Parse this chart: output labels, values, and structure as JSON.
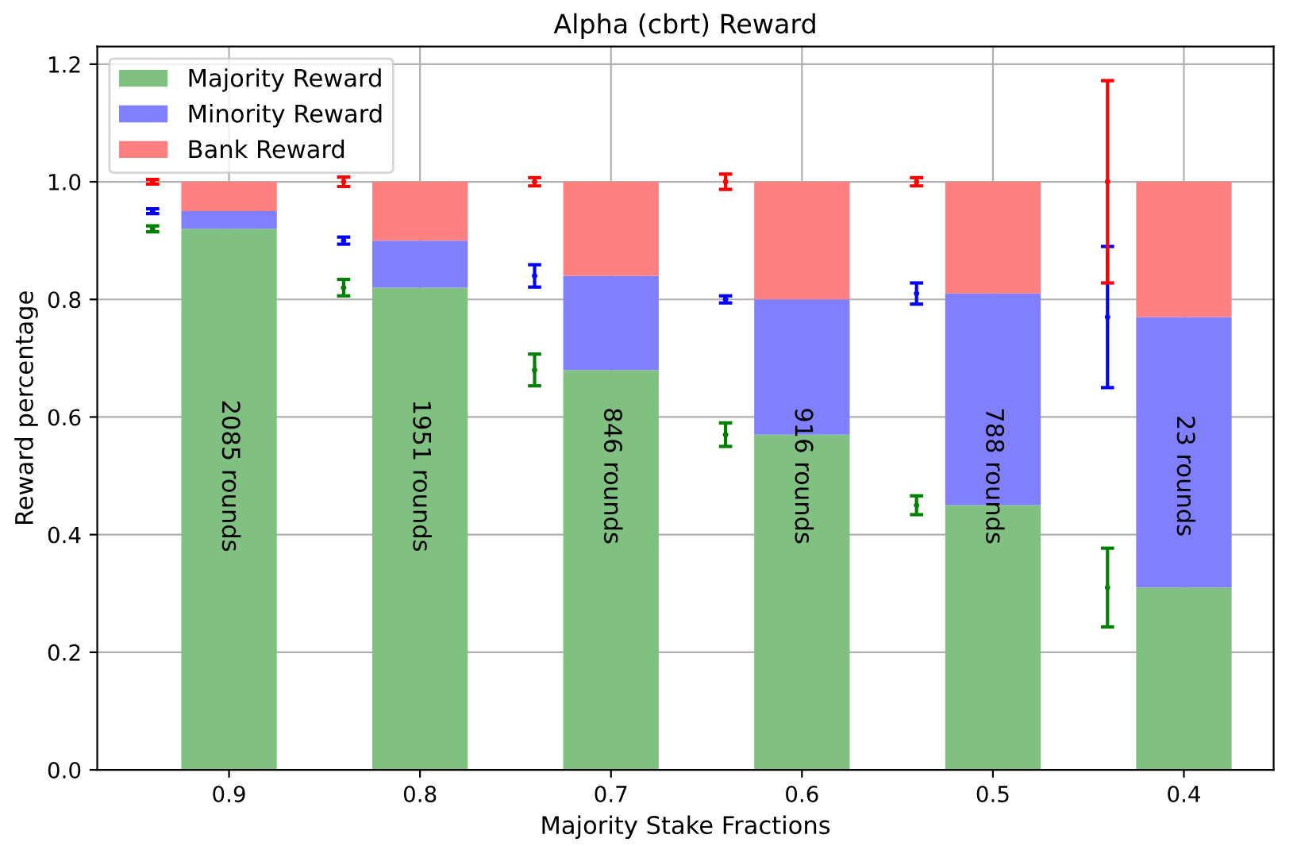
{
  "chart_data": {
    "type": "bar",
    "stacked": true,
    "title": "Alpha (cbrt) Reward",
    "xlabel": "Majority Stake Fractions",
    "ylabel": "Reward percentage",
    "x": [
      0.9,
      0.8,
      0.7,
      0.6,
      0.5,
      0.4
    ],
    "series": [
      {
        "name": "Majority Reward",
        "color": "#80c080",
        "values": [
          0.92,
          0.82,
          0.68,
          0.57,
          0.45,
          0.31
        ]
      },
      {
        "name": "Minority Reward",
        "color": "#8080ff",
        "values": [
          0.03,
          0.08,
          0.16,
          0.23,
          0.36,
          0.46
        ]
      },
      {
        "name": "Bank Reward",
        "color": "#ff8080",
        "values": [
          0.05,
          0.1,
          0.16,
          0.2,
          0.19,
          0.23
        ]
      },
      {
        "type": "scatter",
        "marker": "none",
        "color": "#008000",
        "x": [
          0.94,
          0.84,
          0.74,
          0.64,
          0.54,
          0.44
        ],
        "values": [
          0.92,
          0.82,
          0.68,
          0.57,
          0.45,
          0.31
        ],
        "errors": [
          0.005,
          0.014,
          0.027,
          0.02,
          0.016,
          0.067
        ]
      },
      {
        "type": "scatter",
        "marker": "none",
        "color": "#0000ff",
        "x": [
          0.94,
          0.84,
          0.74,
          0.64,
          0.54,
          0.44
        ],
        "values": [
          0.95,
          0.9,
          0.84,
          0.8,
          0.81,
          0.77
        ],
        "errors": [
          0.004,
          0.006,
          0.019,
          0.006,
          0.018,
          0.12
        ]
      },
      {
        "type": "scatter",
        "marker": "none",
        "color": "#ff0000",
        "x": [
          0.94,
          0.84,
          0.74,
          0.64,
          0.54,
          0.44
        ],
        "values": [
          1.0,
          1.0,
          1.0,
          1.0,
          1.0,
          1.0
        ],
        "errors": [
          0.004,
          0.008,
          0.007,
          0.013,
          0.007,
          0.172
        ]
      }
    ],
    "annotations": [
      "2085 rounds",
      "1951 rounds",
      "846 rounds",
      "916 rounds",
      "788 rounds",
      "23 rounds"
    ],
    "xlim": [
      0.969,
      0.353
    ],
    "xticks": [
      0.9,
      0.8,
      0.7,
      0.6,
      0.5,
      0.4
    ],
    "ylim": [
      0,
      1.23
    ],
    "yticks": [
      {
        "value": 0,
        "label": "0.0"
      },
      {
        "value": 0.2,
        "label": "0.2"
      },
      {
        "value": 0.4,
        "label": "0.4"
      },
      {
        "value": 0.6,
        "label": "0.6"
      },
      {
        "value": 0.8,
        "label": "0.8"
      },
      {
        "value": 1.0,
        "label": "1.0"
      },
      {
        "value": 1.2,
        "label": "1.2"
      }
    ],
    "grid": true,
    "legend": "top left"
  }
}
